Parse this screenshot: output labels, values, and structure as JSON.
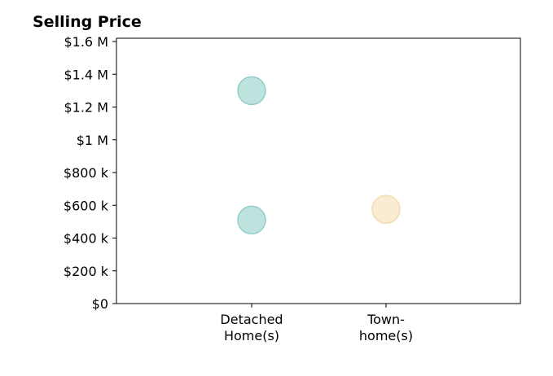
{
  "chart_data": {
    "type": "scatter",
    "title": "Selling Price",
    "xlabel": "",
    "ylabel": "",
    "categories": [
      [
        "Detached",
        "Home(s)"
      ],
      [
        "Town-",
        "home(s)"
      ]
    ],
    "y_ticks": [
      0,
      200000,
      400000,
      600000,
      800000,
      1000000,
      1200000,
      1400000,
      1600000
    ],
    "y_tick_labels": [
      "$0",
      "$200 k",
      "$400 k",
      "$600 k",
      "$800 k",
      "$1 M",
      "$1.2 M",
      "$1.4 M",
      "$1.6 M"
    ],
    "ylim": [
      0,
      1620000
    ],
    "grid": false,
    "points": [
      {
        "category": 0,
        "value": 1300000,
        "color": "#a8d8d2"
      },
      {
        "category": 0,
        "value": 510000,
        "color": "#a8d8d2"
      },
      {
        "category": 1,
        "value": 575000,
        "color": "#f7e6c4"
      }
    ]
  }
}
